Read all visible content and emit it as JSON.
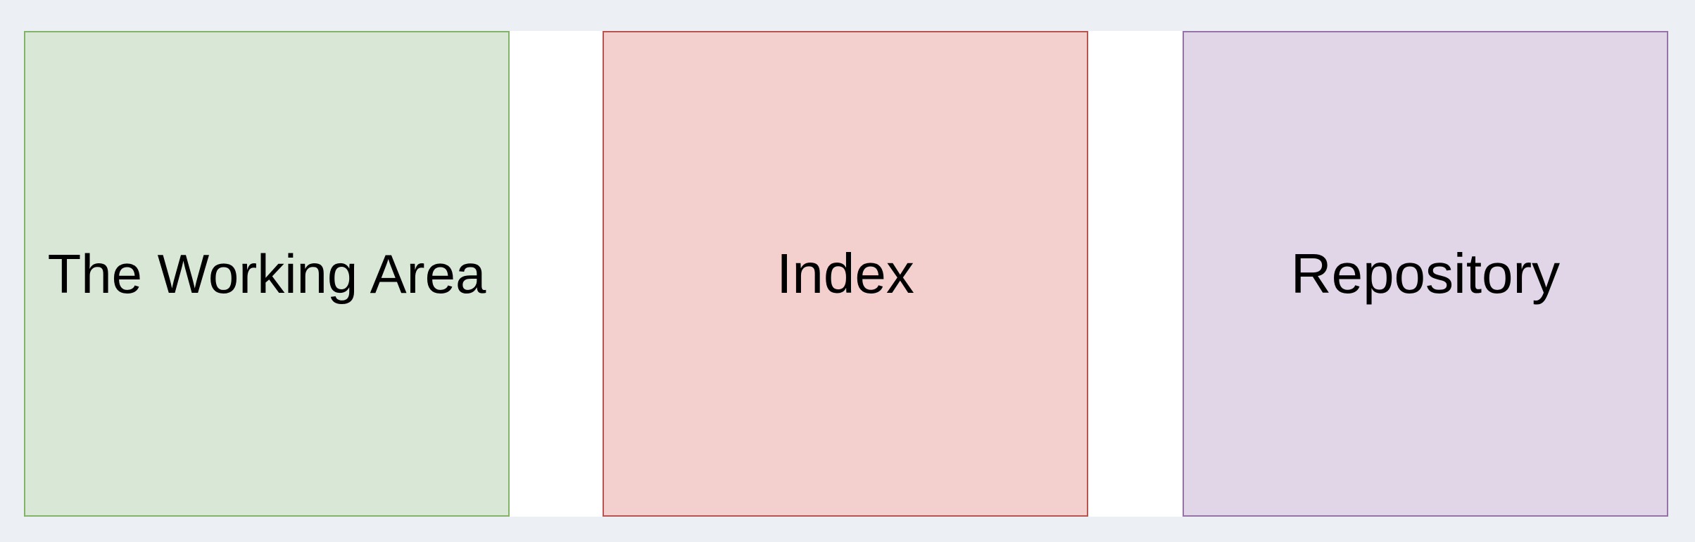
{
  "diagram": {
    "boxes": [
      {
        "label": "The Working Area",
        "fill": "#d9e8d6",
        "stroke": "#82b366"
      },
      {
        "label": "Index",
        "fill": "#f3cfcd",
        "stroke": "#b85450"
      },
      {
        "label": "Repository",
        "fill": "#e1d5e8",
        "stroke": "#9673a6"
      }
    ]
  }
}
